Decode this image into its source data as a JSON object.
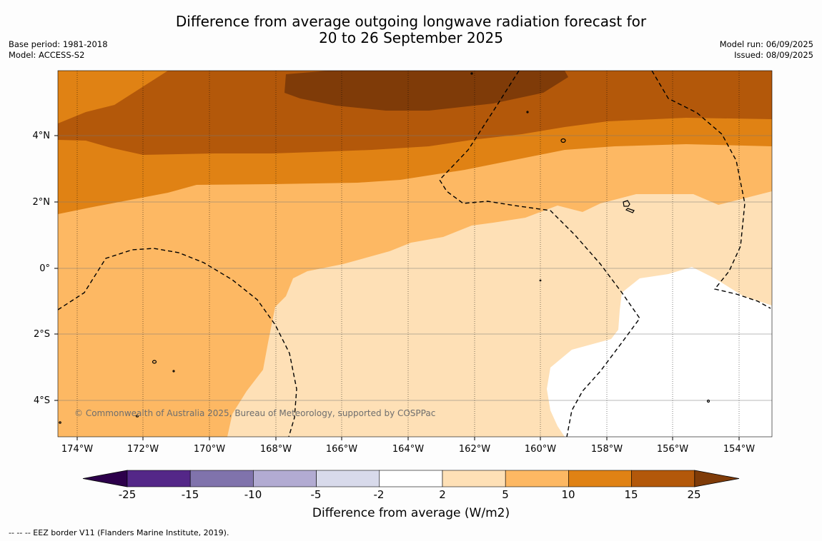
{
  "title_line1": "Difference from average outgoing longwave radiation forecast for",
  "title_line2": "20 to 26 September 2025",
  "meta_left": {
    "base_period": "Base period: 1981-2018",
    "model": "Model: ACCESS-S2"
  },
  "meta_right": {
    "model_run": "Model run: 06/09/2025",
    "issued": "Issued: 08/09/2025"
  },
  "map": {
    "lat_labels": [
      "4°N",
      "2°N",
      "0°",
      "2°S",
      "4°S"
    ],
    "lon_labels": [
      "174°W",
      "172°W",
      "170°W",
      "168°W",
      "166°W",
      "164°W",
      "162°W",
      "160°W",
      "158°W",
      "156°W",
      "154°W"
    ],
    "copyright": "© Commonwealth of Australia 2025, Bureau of Meteorology, supported by COSPPac",
    "colors": {
      "level_15_25": "#b3580a",
      "level_25_plus": "#7f3b08",
      "level_10_15": "#e08214",
      "level_5_10": "#fdb863",
      "level_2_5": "#fee0b6",
      "level_-2_2": "#ffffff"
    }
  },
  "colorbar": {
    "ticks": [
      "-25",
      "-15",
      "-10",
      "-5",
      "-2",
      "2",
      "5",
      "10",
      "15",
      "25"
    ],
    "colors": [
      "#2d004b",
      "#542788",
      "#8073ac",
      "#b2abd2",
      "#d8daeb",
      "#ffffff",
      "#fee0b6",
      "#fdb863",
      "#e08214",
      "#b3580a",
      "#7f3b08"
    ],
    "title": "Difference from average (W/m2)"
  },
  "footnote": "--  --  -- EEZ border V11 (Flanders Marine Institute, 2019)."
}
